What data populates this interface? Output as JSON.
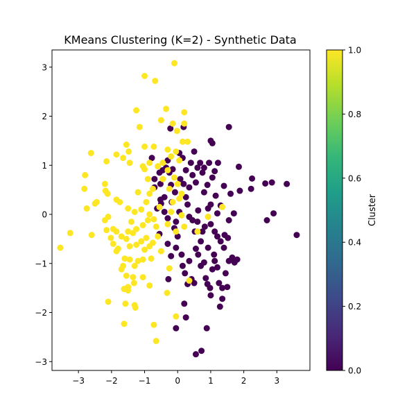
{
  "chart_data": {
    "type": "scatter",
    "title": "KMeans Clustering (K=2) - Synthetic Data",
    "xlabel": "",
    "ylabel": "",
    "xlim": [
      -3.8,
      4.0
    ],
    "ylim": [
      -3.18,
      3.35
    ],
    "xticks": [
      -3,
      -2,
      -1,
      0,
      1,
      2,
      3
    ],
    "yticks": [
      -3,
      -2,
      -1,
      0,
      1,
      2,
      3
    ],
    "x_tick_labels": [
      "−3",
      "−2",
      "−1",
      "0",
      "1",
      "2",
      "3"
    ],
    "y_tick_labels": [
      "−3",
      "−2",
      "−1",
      "0",
      "1",
      "2",
      "3"
    ],
    "grid": false,
    "legend": null,
    "colorbar": {
      "label": "Cluster",
      "range": [
        0.0,
        1.0
      ],
      "ticks": [
        0.0,
        0.2,
        0.4,
        0.6,
        0.8,
        1.0
      ],
      "tick_labels": [
        "0.0",
        "0.2",
        "0.4",
        "0.6",
        "0.8",
        "1.0"
      ],
      "colormap": "viridis",
      "stops": [
        "#440154",
        "#482878",
        "#3e4989",
        "#31688e",
        "#26828e",
        "#1f9e89",
        "#35b779",
        "#6ece58",
        "#b5de2b",
        "#fde725"
      ]
    },
    "series": [
      {
        "cluster": 0,
        "color": "#440154",
        "points": [
          [
            -0.55,
            0.85
          ],
          [
            -0.45,
            0.9
          ],
          [
            -0.35,
            0.95
          ],
          [
            -0.25,
            0.85
          ],
          [
            -0.15,
            0.92
          ],
          [
            -0.78,
            1.15
          ],
          [
            -0.7,
            0.55
          ],
          [
            -0.52,
            0.62
          ],
          [
            -0.4,
            0.35
          ],
          [
            -0.2,
            0.6
          ],
          [
            -0.08,
            0.45
          ],
          [
            -0.22,
            1.75
          ],
          [
            -0.3,
            1.1
          ],
          [
            0.05,
            1.25
          ],
          [
            0.08,
            0.72
          ],
          [
            0.18,
            0.62
          ],
          [
            0.25,
            0.35
          ],
          [
            0.3,
            0.2
          ],
          [
            0.35,
            0.55
          ],
          [
            0.45,
            0.8
          ],
          [
            0.55,
            0.65
          ],
          [
            0.6,
            0.95
          ],
          [
            0.68,
            1.05
          ],
          [
            0.75,
            0.85
          ],
          [
            0.8,
            0.45
          ],
          [
            0.9,
            0.6
          ],
          [
            0.95,
            1.05
          ],
          [
            1.0,
            0.2
          ],
          [
            1.05,
            0.75
          ],
          [
            1.12,
            0.88
          ],
          [
            1.22,
            1.05
          ],
          [
            1.0,
            1.5
          ],
          [
            1.05,
            1.45
          ],
          [
            1.55,
            1.78
          ],
          [
            1.85,
            0.97
          ],
          [
            1.88,
            0.48
          ],
          [
            1.6,
            0.42
          ],
          [
            2.22,
            0.52
          ],
          [
            2.25,
            0.73
          ],
          [
            2.65,
            0.63
          ],
          [
            2.85,
            0.65
          ],
          [
            3.3,
            0.62
          ],
          [
            3.6,
            -0.42
          ],
          [
            2.7,
            -0.12
          ],
          [
            2.9,
            0.02
          ],
          [
            0.18,
            1.78
          ],
          [
            0.5,
            1.28
          ],
          [
            0.8,
            0.95
          ],
          [
            0.35,
            -0.05
          ],
          [
            0.45,
            -0.12
          ],
          [
            0.52,
            -0.35
          ],
          [
            0.62,
            0.08
          ],
          [
            0.7,
            -0.55
          ],
          [
            0.82,
            -0.25
          ],
          [
            0.92,
            0.12
          ],
          [
            1.0,
            -0.2
          ],
          [
            1.12,
            -0.35
          ],
          [
            1.2,
            -0.45
          ],
          [
            1.3,
            -0.55
          ],
          [
            1.42,
            -0.42
          ],
          [
            1.52,
            -0.48
          ],
          [
            1.15,
            0.38
          ],
          [
            1.3,
            0.18
          ],
          [
            1.4,
            0.58
          ],
          [
            -0.5,
            0.22
          ],
          [
            -0.4,
            0.05
          ],
          [
            -0.3,
            -0.08
          ],
          [
            -0.18,
            0.25
          ],
          [
            -0.05,
            -0.15
          ],
          [
            -0.55,
            -0.4
          ],
          [
            -0.3,
            -0.6
          ],
          [
            -0.2,
            -0.85
          ],
          [
            -0.05,
            -0.68
          ],
          [
            0.12,
            -0.82
          ],
          [
            0.15,
            -1.05
          ],
          [
            0.22,
            -1.2
          ],
          [
            0.35,
            -0.95
          ],
          [
            0.42,
            -1.32
          ],
          [
            0.5,
            -1.4
          ],
          [
            0.55,
            -0.7
          ],
          [
            0.62,
            -0.82
          ],
          [
            0.7,
            -1.05
          ],
          [
            0.8,
            -0.98
          ],
          [
            0.85,
            -1.3
          ],
          [
            0.9,
            -1.42
          ],
          [
            0.98,
            -1.5
          ],
          [
            1.05,
            -1.12
          ],
          [
            1.12,
            -0.95
          ],
          [
            1.2,
            -1.08
          ],
          [
            1.25,
            -1.4
          ],
          [
            1.35,
            -1.5
          ],
          [
            1.5,
            -1.48
          ],
          [
            1.45,
            -1.2
          ],
          [
            1.55,
            -0.95
          ],
          [
            1.65,
            -0.88
          ],
          [
            1.72,
            -0.98
          ],
          [
            1.8,
            -0.92
          ],
          [
            1.4,
            -0.68
          ],
          [
            1.1,
            -0.82
          ],
          [
            0.75,
            -0.35
          ],
          [
            1.35,
            -1.72
          ],
          [
            1.28,
            -1.88
          ],
          [
            1.0,
            -1.65
          ],
          [
            0.88,
            -2.32
          ],
          [
            0.25,
            -2.1
          ],
          [
            -0.05,
            -2.32
          ],
          [
            0.55,
            -2.85
          ],
          [
            0.72,
            -2.78
          ],
          [
            0.2,
            -1.82
          ],
          [
            -0.28,
            -1.32
          ],
          [
            0.3,
            -1.42
          ],
          [
            0.0,
            -0.45
          ],
          [
            -0.1,
            -0.28
          ],
          [
            0.6,
            -0.15
          ],
          [
            1.55,
            -0.12
          ],
          [
            1.7,
            0.02
          ],
          [
            0.25,
            0.9
          ],
          [
            0.4,
            1.05
          ],
          [
            0.15,
            1.15
          ],
          [
            1.2,
            0.02
          ],
          [
            -0.62,
            0.12
          ],
          [
            -0.7,
            0.72
          ],
          [
            -0.52,
            0.3
          ],
          [
            0.05,
            0.05
          ],
          [
            0.92,
            -0.68
          ]
        ]
      },
      {
        "cluster": 1,
        "color": "#fde725",
        "points": [
          [
            -0.1,
            3.08
          ],
          [
            -1.0,
            2.82
          ],
          [
            -0.68,
            2.72
          ],
          [
            -0.35,
            2.15
          ],
          [
            -1.25,
            2.12
          ],
          [
            0.2,
            2.08
          ],
          [
            -1.15,
            1.78
          ],
          [
            -0.5,
            1.92
          ],
          [
            -0.15,
            1.85
          ],
          [
            0.2,
            1.85
          ],
          [
            -0.02,
            1.7
          ],
          [
            -1.55,
            1.42
          ],
          [
            -1.0,
            1.38
          ],
          [
            -0.72,
            1.38
          ],
          [
            -0.3,
            1.32
          ],
          [
            -0.05,
            1.28
          ],
          [
            0.15,
            1.48
          ],
          [
            0.3,
            1.48
          ],
          [
            -1.85,
            1.22
          ],
          [
            -1.65,
            1.15
          ],
          [
            -2.62,
            1.25
          ],
          [
            -2.15,
            1.08
          ],
          [
            -1.48,
            1.28
          ],
          [
            -1.45,
            1.05
          ],
          [
            -1.05,
            0.98
          ],
          [
            -0.85,
            1.05
          ],
          [
            -0.6,
            0.98
          ],
          [
            -0.2,
            1.18
          ],
          [
            0.05,
            1.1
          ],
          [
            -1.0,
            0.92
          ],
          [
            -0.9,
            0.72
          ],
          [
            -0.75,
            0.52
          ],
          [
            -0.85,
            0.42
          ],
          [
            -1.2,
            0.45
          ],
          [
            -0.95,
            0.25
          ],
          [
            -1.1,
            0.1
          ],
          [
            -0.45,
            0.72
          ],
          [
            -0.25,
            0.52
          ],
          [
            -0.1,
            0.75
          ],
          [
            0.0,
            0.62
          ],
          [
            -2.2,
            0.62
          ],
          [
            -2.8,
            0.8
          ],
          [
            -2.82,
            0.52
          ],
          [
            -2.18,
            0.48
          ],
          [
            -2.12,
            0.42
          ],
          [
            -2.75,
            0.12
          ],
          [
            -2.5,
            0.22
          ],
          [
            -2.45,
            0.25
          ],
          [
            -1.85,
            0.3
          ],
          [
            -1.75,
            0.25
          ],
          [
            -2.2,
            -0.12
          ],
          [
            -2.1,
            -0.05
          ],
          [
            -1.95,
            -0.3
          ],
          [
            -1.85,
            -0.35
          ],
          [
            -2.15,
            -0.32
          ],
          [
            -2.02,
            -0.48
          ],
          [
            -1.5,
            -0.35
          ],
          [
            -1.7,
            -0.45
          ],
          [
            -1.55,
            -0.5
          ],
          [
            -3.25,
            -0.38
          ],
          [
            -3.55,
            -0.68
          ],
          [
            -2.6,
            -0.42
          ],
          [
            -1.95,
            -0.6
          ],
          [
            -1.85,
            -0.75
          ],
          [
            -1.8,
            -0.7
          ],
          [
            -1.45,
            -0.65
          ],
          [
            -1.25,
            -0.62
          ],
          [
            -1.1,
            -0.55
          ],
          [
            -0.95,
            -0.48
          ],
          [
            -0.85,
            -0.65
          ],
          [
            -0.75,
            -0.58
          ],
          [
            -1.35,
            -0.38
          ],
          [
            -1.25,
            -0.3
          ],
          [
            -1.05,
            -0.22
          ],
          [
            -0.9,
            -0.12
          ],
          [
            -0.85,
            0.0
          ],
          [
            -0.72,
            -0.1
          ],
          [
            -0.65,
            -0.25
          ],
          [
            -1.6,
            -0.9
          ],
          [
            -1.45,
            -0.92
          ],
          [
            -1.2,
            -0.95
          ],
          [
            -1.05,
            -0.92
          ],
          [
            -1.3,
            -1.05
          ],
          [
            -1.65,
            -1.05
          ],
          [
            -1.7,
            -1.12
          ],
          [
            -1.55,
            -1.25
          ],
          [
            -1.35,
            -1.28
          ],
          [
            -1.05,
            -1.28
          ],
          [
            -1.62,
            -1.52
          ],
          [
            -1.5,
            -1.48
          ],
          [
            -1.5,
            -1.55
          ],
          [
            -1.32,
            -1.4
          ],
          [
            -2.1,
            -1.78
          ],
          [
            -1.58,
            -1.82
          ],
          [
            -1.3,
            -1.85
          ],
          [
            -1.28,
            -1.9
          ],
          [
            -0.85,
            -1.45
          ],
          [
            -0.32,
            -1.6
          ],
          [
            -0.05,
            -2.08
          ],
          [
            -1.62,
            -2.23
          ],
          [
            -0.72,
            -2.25
          ],
          [
            -0.65,
            -2.58
          ],
          [
            0.35,
            -1.35
          ],
          [
            -0.25,
            -1.1
          ],
          [
            0.2,
            -0.25
          ],
          [
            -0.3,
            -0.2
          ],
          [
            0.12,
            -0.02
          ],
          [
            -0.05,
            -0.35
          ],
          [
            0.6,
            -0.35
          ],
          [
            0.92,
            -0.05
          ],
          [
            1.35,
            0.15
          ],
          [
            0.12,
            0.42
          ],
          [
            0.05,
            0.32
          ],
          [
            -0.15,
            0.25
          ],
          [
            -0.6,
            -0.45
          ],
          [
            -0.5,
            -0.75
          ],
          [
            -0.8,
            -0.9
          ],
          [
            -1.0,
            -0.72
          ],
          [
            -0.3,
            0.9
          ],
          [
            -0.45,
            1.05
          ],
          [
            -0.2,
            0.05
          ],
          [
            -1.5,
            0.12
          ],
          [
            -1.3,
            0.05
          ],
          [
            -1.4,
            -0.15
          ],
          [
            -0.55,
            0.15
          ]
        ]
      }
    ]
  }
}
